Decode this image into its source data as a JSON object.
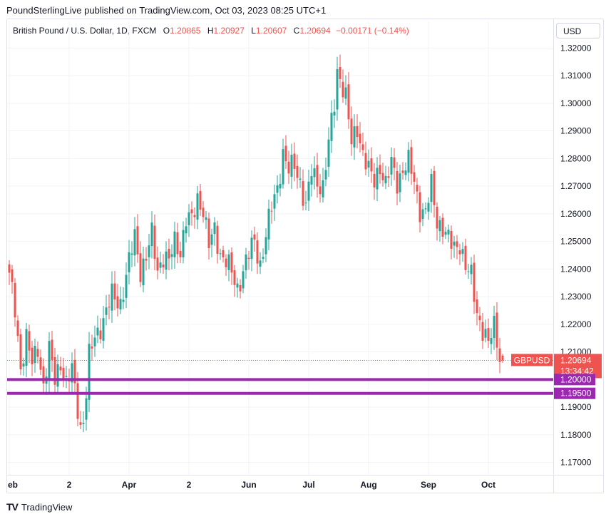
{
  "header": {
    "publisher": "PoundSterlingLive published on TradingView.com, Oct 03, 2023 08:25 UTC+1"
  },
  "legend": {
    "symbol": "British Pound / U.S. Dollar, 1D, FXCM",
    "open_label": "O",
    "open": "1.20865",
    "high_label": "H",
    "high": "1.20927",
    "low_label": "L",
    "low": "1.20607",
    "close_label": "C",
    "close": "1.20694",
    "change": "−0.00171 (−0.14%)"
  },
  "currency_button": "USD",
  "price_tag": {
    "symbol": "GBPUSD",
    "price": "1.20694",
    "countdown": "13:34:42"
  },
  "levels": [
    {
      "label": "1.20000",
      "value": 1.2
    },
    {
      "label": "1.19500",
      "value": 1.195
    }
  ],
  "footer": {
    "logo_glyph": "TV",
    "brand": "TradingView"
  },
  "colors": {
    "up": "#26a69a",
    "down": "#ef5350",
    "level": "#9c27b0"
  },
  "chart_data": {
    "type": "candlestick",
    "y_ticks": [
      "1.32000",
      "1.31000",
      "1.30000",
      "1.29000",
      "1.28000",
      "1.27000",
      "1.26000",
      "1.25000",
      "1.24000",
      "1.23000",
      "1.22000",
      "1.21000",
      "1.19000",
      "1.18000",
      "1.17000"
    ],
    "y_tick_values": [
      1.32,
      1.31,
      1.3,
      1.29,
      1.28,
      1.27,
      1.26,
      1.25,
      1.24,
      1.23,
      1.22,
      1.21,
      1.19,
      1.18,
      1.17
    ],
    "ylim": [
      1.1655,
      1.3245
    ],
    "x_ticks": [
      {
        "label": "eb",
        "index": 0
      },
      {
        "label": "2",
        "index": 21
      },
      {
        "label": "Apr",
        "index": 42
      },
      {
        "label": "2",
        "index": 63
      },
      {
        "label": "Jun",
        "index": 84
      },
      {
        "label": "Jul",
        "index": 105
      },
      {
        "label": "Aug",
        "index": 126
      },
      {
        "label": "Sep",
        "index": 147
      },
      {
        "label": "Oct",
        "index": 168
      }
    ],
    "grid": true,
    "anchors": [
      [
        0,
        1.237
      ],
      [
        2,
        1.225
      ],
      [
        4,
        1.205
      ],
      [
        6,
        1.215
      ],
      [
        8,
        1.205
      ],
      [
        10,
        1.212
      ],
      [
        12,
        1.198
      ],
      [
        14,
        1.21
      ],
      [
        16,
        1.2
      ],
      [
        18,
        1.207
      ],
      [
        20,
        1.198
      ],
      [
        22,
        1.203
      ],
      [
        24,
        1.19
      ],
      [
        25,
        1.183
      ],
      [
        26,
        1.186
      ],
      [
        27,
        1.195
      ],
      [
        28,
        1.208
      ],
      [
        30,
        1.215
      ],
      [
        33,
        1.222
      ],
      [
        36,
        1.23
      ],
      [
        39,
        1.228
      ],
      [
        42,
        1.242
      ],
      [
        44,
        1.252
      ],
      [
        46,
        1.24
      ],
      [
        48,
        1.244
      ],
      [
        50,
        1.252
      ],
      [
        52,
        1.24
      ],
      [
        54,
        1.245
      ],
      [
        56,
        1.242
      ],
      [
        58,
        1.25
      ],
      [
        60,
        1.247
      ],
      [
        62,
        1.258
      ],
      [
        64,
        1.257
      ],
      [
        66,
        1.266
      ],
      [
        68,
        1.262
      ],
      [
        70,
        1.248
      ],
      [
        72,
        1.254
      ],
      [
        74,
        1.246
      ],
      [
        76,
        1.243
      ],
      [
        78,
        1.238
      ],
      [
        80,
        1.233
      ],
      [
        82,
        1.24
      ],
      [
        84,
        1.245
      ],
      [
        86,
        1.25
      ],
      [
        88,
        1.242
      ],
      [
        90,
        1.252
      ],
      [
        92,
        1.262
      ],
      [
        94,
        1.27
      ],
      [
        96,
        1.282
      ],
      [
        98,
        1.275
      ],
      [
        100,
        1.278
      ],
      [
        102,
        1.272
      ],
      [
        104,
        1.262
      ],
      [
        106,
        1.275
      ],
      [
        108,
        1.272
      ],
      [
        110,
        1.27
      ],
      [
        112,
        1.285
      ],
      [
        114,
        1.3
      ],
      [
        115,
        1.312
      ],
      [
        116,
        1.31
      ],
      [
        118,
        1.302
      ],
      [
        120,
        1.285
      ],
      [
        122,
        1.292
      ],
      [
        124,
        1.282
      ],
      [
        126,
        1.275
      ],
      [
        128,
        1.272
      ],
      [
        130,
        1.278
      ],
      [
        132,
        1.27
      ],
      [
        134,
        1.278
      ],
      [
        136,
        1.272
      ],
      [
        138,
        1.276
      ],
      [
        140,
        1.278
      ],
      [
        142,
        1.272
      ],
      [
        144,
        1.262
      ],
      [
        146,
        1.26
      ],
      [
        148,
        1.27
      ],
      [
        150,
        1.258
      ],
      [
        152,
        1.255
      ],
      [
        154,
        1.25
      ],
      [
        156,
        1.248
      ],
      [
        158,
        1.25
      ],
      [
        160,
        1.24
      ],
      [
        162,
        1.237
      ],
      [
        164,
        1.225
      ],
      [
        166,
        1.218
      ],
      [
        168,
        1.212
      ],
      [
        170,
        1.22
      ],
      [
        171,
        1.215
      ],
      [
        172,
        1.209
      ],
      [
        173,
        1.2069
      ]
    ]
  }
}
